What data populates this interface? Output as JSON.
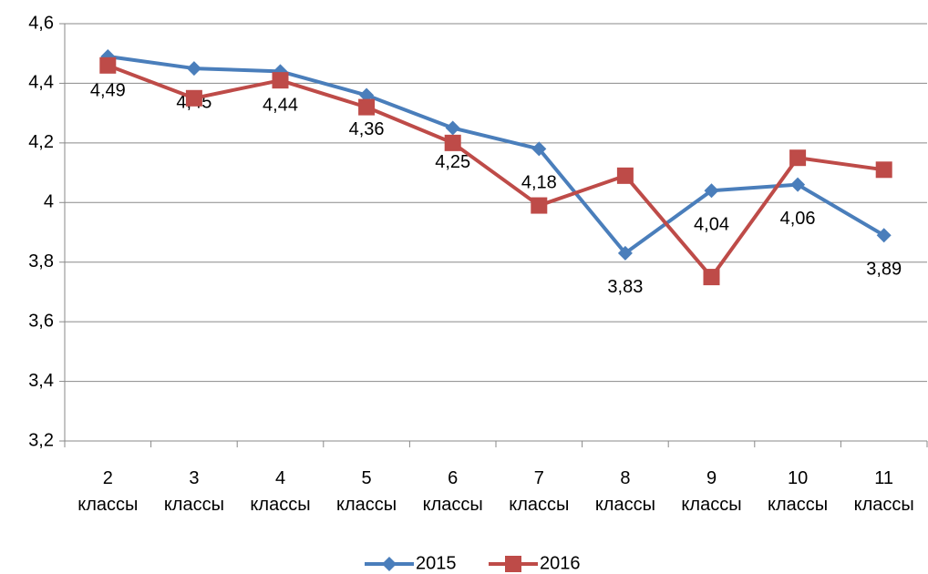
{
  "chart_data": {
    "type": "line",
    "categories": [
      "2 классы",
      "3 классы",
      "4 классы",
      "5 классы",
      "6 классы",
      "7 классы",
      "8 классы",
      "9 классы",
      "10 классы",
      "11 классы"
    ],
    "series": [
      {
        "name": "2015",
        "color": "#4a7ebb",
        "marker": "diamond",
        "values": [
          4.49,
          4.45,
          4.44,
          4.36,
          4.25,
          4.18,
          3.83,
          4.04,
          4.06,
          3.89
        ],
        "value_labels": [
          "4,49",
          "4,45",
          "4,44",
          "4,36",
          "4,25",
          "4,18",
          "3,83",
          "4,04",
          "4,06",
          "3,89"
        ]
      },
      {
        "name": "2016",
        "color": "#be4b48",
        "marker": "square",
        "values": [
          4.46,
          4.35,
          4.41,
          4.32,
          4.2,
          3.99,
          4.09,
          3.75,
          4.15,
          4.11
        ]
      }
    ],
    "ylim": [
      3.2,
      4.6
    ],
    "yticks": [
      {
        "value": 3.2,
        "label": "3,2"
      },
      {
        "value": 3.4,
        "label": "3,4"
      },
      {
        "value": 3.6,
        "label": "3,6"
      },
      {
        "value": 3.8,
        "label": "3,8"
      },
      4,
      {
        "value": 4.2,
        "label": "4,2"
      },
      {
        "value": 4.4,
        "label": "4,4"
      },
      {
        "value": 4.6,
        "label": "4,6"
      }
    ],
    "grid": true,
    "legend": "bottom"
  }
}
